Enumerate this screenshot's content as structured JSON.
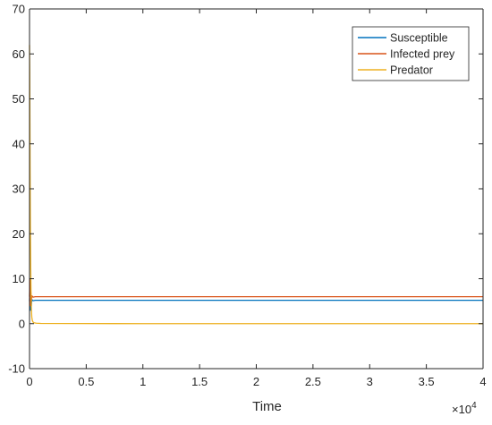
{
  "chart_data": {
    "type": "line",
    "title": "",
    "xlabel": "Time",
    "ylabel": "",
    "x_exponent_label": "×10",
    "x_exponent": "4",
    "xlim": [
      0,
      4
    ],
    "ylim": [
      -10,
      70
    ],
    "x_ticks": [
      0,
      0.5,
      1,
      1.5,
      2,
      2.5,
      3,
      3.5,
      4
    ],
    "x_tick_labels": [
      "0",
      "0.5",
      "1",
      "1.5",
      "2",
      "2.5",
      "3",
      "3.5",
      "4"
    ],
    "y_ticks": [
      -10,
      0,
      10,
      20,
      30,
      40,
      50,
      60,
      70
    ],
    "y_tick_labels": [
      "-10",
      "0",
      "10",
      "20",
      "30",
      "40",
      "50",
      "60",
      "70"
    ],
    "grid": false,
    "legend_position": "top-right",
    "series": [
      {
        "name": "Susceptible",
        "color": "#0072BD",
        "x": [
          0,
          0.004,
          0.008,
          0.012,
          0.016,
          0.02,
          0.03,
          0.05,
          0.1,
          1,
          2,
          3,
          4
        ],
        "y": [
          5,
          8,
          3,
          6,
          4,
          5.4,
          5.1,
          5.2,
          5.2,
          5.2,
          5.2,
          5.2,
          5.2
        ]
      },
      {
        "name": "Infected prey",
        "color": "#D95319",
        "x": [
          0,
          0.004,
          0.008,
          0.012,
          0.016,
          0.02,
          0.03,
          0.05,
          0.1,
          1,
          2,
          3,
          4
        ],
        "y": [
          6,
          10,
          4,
          7,
          5,
          6.2,
          5.9,
          6,
          6,
          6,
          6,
          6,
          6
        ]
      },
      {
        "name": "Predator",
        "color": "#EDB120",
        "x": [
          0,
          0.002,
          0.005,
          0.008,
          0.011,
          0.014,
          0.017,
          0.02,
          0.024,
          0.028,
          0.033,
          0.04,
          0.06,
          0.1,
          1,
          2,
          3,
          4
        ],
        "y": [
          62,
          56,
          35,
          20,
          12,
          6,
          3,
          1.5,
          0.8,
          0.5,
          0.3,
          0.2,
          0.1,
          0.05,
          0,
          0,
          0,
          0
        ]
      }
    ]
  }
}
